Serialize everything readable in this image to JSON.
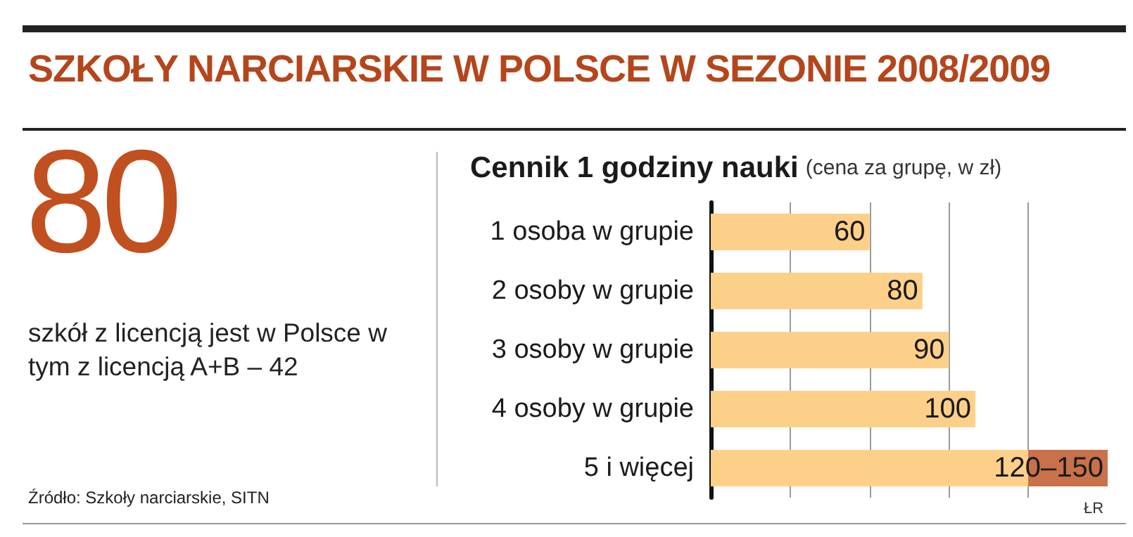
{
  "chart_data": [
    {
      "type": "other",
      "title": "SZKOŁY NARCIARSKIE W POLSCE W SEZONIE 2008/2009",
      "annotations": [
        "80",
        "szkół z licencją jest w Polsce w tym z licencją A+B – 42",
        "Źródło: Szkoły narciarskie, SITN"
      ]
    },
    {
      "type": "bar",
      "orientation": "horizontal",
      "stacked": true,
      "title": "Cennik 1 godziny nauki",
      "subtitle": "(cena za grupę, w zł)",
      "categories": [
        "1 osoba w grupie",
        "2 osoby w grupie",
        "3 osoby w grupie",
        "4 osoby w grupie",
        "5 i więcej"
      ],
      "series": [
        {
          "color": "#fdd08a",
          "values": [
            60,
            80,
            90,
            100,
            120
          ],
          "value_labels": [
            "60",
            "80",
            "90",
            "100",
            null
          ]
        },
        {
          "color": "#c8714b",
          "values": [
            null,
            null,
            null,
            null,
            30
          ],
          "value_labels": [
            null,
            null,
            null,
            null,
            "120–150"
          ]
        }
      ],
      "xlim": [
        0,
        150
      ],
      "xticks": [
        {
          "value": 30,
          "label": null
        },
        {
          "value": 60,
          "label": null
        },
        {
          "value": 90,
          "label": null
        },
        {
          "value": 120,
          "label": null
        }
      ],
      "grid": "x",
      "tick_labels": "y",
      "annotations": [
        "ŁR"
      ]
    }
  ]
}
